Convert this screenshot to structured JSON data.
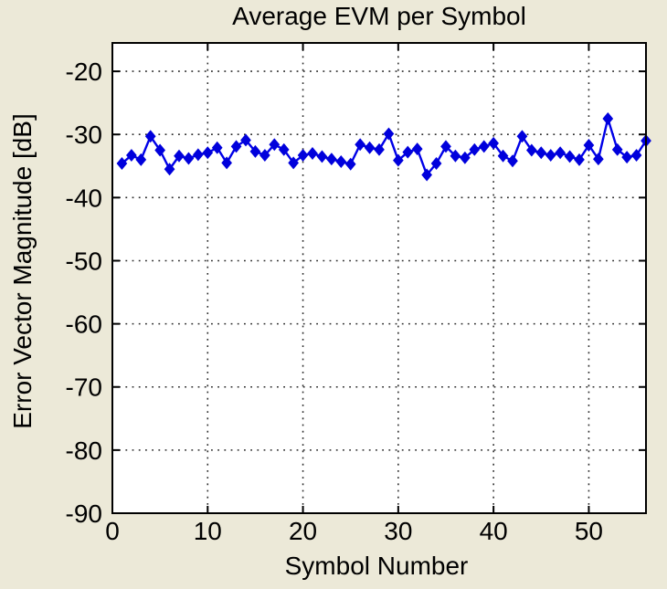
{
  "figure": {
    "background_color": "#ECE9D8",
    "plot_background_color": "#FFFFFF",
    "axis_color": "#000000",
    "grid_color": "#2B2B2B",
    "line_color": "#0000E8",
    "marker_color": "#0000DC"
  },
  "chart_data": {
    "type": "line",
    "title": "Average EVM per Symbol",
    "xlabel": "Symbol Number",
    "ylabel": "Error Vector Magnitude [dB]",
    "xlim": [
      0,
      56
    ],
    "ylim": [
      -90,
      -15.5
    ],
    "xticks": [
      0,
      10,
      20,
      30,
      40,
      50
    ],
    "yticks": [
      -20,
      -30,
      -40,
      -50,
      -60,
      -70,
      -80,
      -90
    ],
    "grid": true,
    "grid_style": "dotted",
    "legend": null,
    "marker": "diamond",
    "series": [
      {
        "name": "Average EVM per Symbol",
        "x": [
          1,
          2,
          3,
          4,
          5,
          6,
          7,
          8,
          9,
          10,
          11,
          12,
          13,
          14,
          15,
          16,
          17,
          18,
          19,
          20,
          21,
          22,
          23,
          24,
          25,
          26,
          27,
          28,
          29,
          30,
          31,
          32,
          33,
          34,
          35,
          36,
          37,
          38,
          39,
          40,
          41,
          42,
          43,
          44,
          45,
          46,
          47,
          48,
          49,
          50,
          51,
          52,
          53,
          54,
          55,
          56
        ],
        "y": [
          -34.6,
          -33.3,
          -34.0,
          -30.3,
          -32.5,
          -35.5,
          -33.4,
          -33.8,
          -33.2,
          -32.9,
          -32.1,
          -34.5,
          -31.9,
          -30.9,
          -32.7,
          -33.3,
          -31.6,
          -32.4,
          -34.5,
          -33.3,
          -33.0,
          -33.5,
          -33.9,
          -34.3,
          -34.7,
          -31.6,
          -32.1,
          -32.4,
          -29.9,
          -34.1,
          -32.8,
          -32.3,
          -36.4,
          -34.6,
          -31.9,
          -33.4,
          -33.7,
          -32.4,
          -31.9,
          -31.4,
          -33.4,
          -34.2,
          -30.3,
          -32.5,
          -32.9,
          -33.3,
          -32.9,
          -33.5,
          -34.0,
          -31.7,
          -33.9,
          -27.5,
          -32.4,
          -33.6,
          -33.3,
          -31.0
        ]
      }
    ]
  }
}
